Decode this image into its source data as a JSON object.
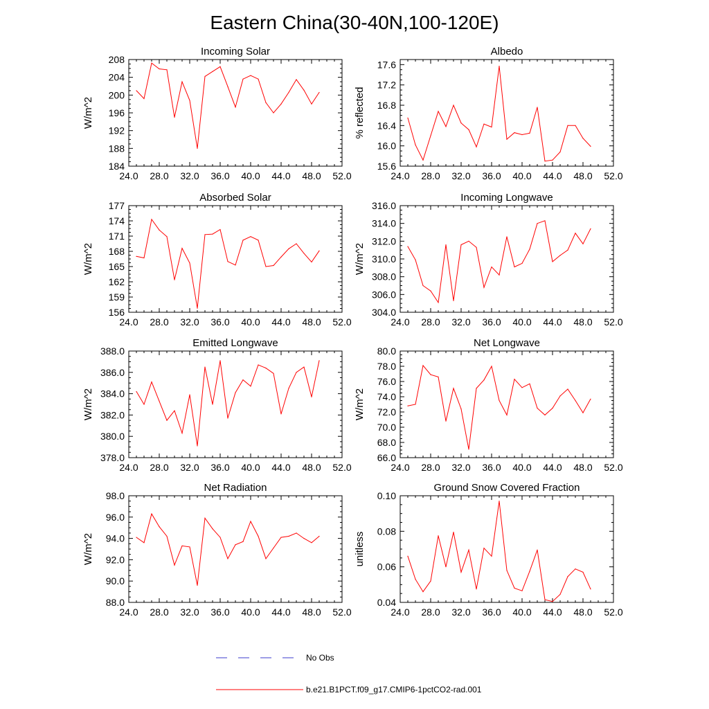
{
  "page_title": "Eastern China(30-40N,100-120E)",
  "legend": [
    {
      "label": "No Obs",
      "color": "#3b3bcc",
      "style": "dashed"
    },
    {
      "label": "b.e21.B1PCT.f09_g17.CMIP6-1pctCO2-rad.001",
      "color": "#ff0000",
      "style": "solid"
    }
  ],
  "chart_data": [
    {
      "type": "line",
      "title": "Incoming Solar",
      "ylabel": "W/m^2",
      "xlim": [
        24,
        52
      ],
      "ylim": [
        184,
        208
      ],
      "xticks": [
        "24.0",
        "28.0",
        "32.0",
        "36.0",
        "40.0",
        "44.0",
        "48.0",
        "52.0"
      ],
      "yticks": [
        "184",
        "188",
        "192",
        "196",
        "200",
        "204",
        "208"
      ],
      "series": [
        {
          "color": "#ff0000",
          "x": [
            25,
            26,
            27,
            28,
            29,
            30,
            31,
            32,
            33,
            34,
            35,
            36,
            37,
            38,
            39,
            40,
            41,
            42,
            43,
            44,
            45,
            46,
            47,
            48,
            49
          ],
          "values": [
            201,
            199.2,
            207.2,
            205.9,
            205.7,
            195,
            203,
            198.8,
            188,
            204.2,
            205.3,
            206.4,
            201.9,
            197.3,
            203.6,
            204.4,
            203.6,
            198.3,
            196,
            198,
            200.6,
            203.5,
            201.1,
            198,
            200.6
          ]
        }
      ]
    },
    {
      "type": "line",
      "title": "Albedo",
      "ylabel": "% reflected",
      "xlim": [
        24,
        52
      ],
      "ylim": [
        15.6,
        17.7
      ],
      "xticks": [
        "24.0",
        "28.0",
        "32.0",
        "36.0",
        "40.0",
        "44.0",
        "48.0",
        "52.0"
      ],
      "yticks": [
        "15.6",
        "16.0",
        "16.4",
        "16.8",
        "17.2",
        "17.6"
      ],
      "series": [
        {
          "color": "#ff0000",
          "x": [
            25,
            26,
            27,
            28,
            29,
            30,
            31,
            32,
            33,
            34,
            35,
            36,
            37,
            38,
            39,
            40,
            41,
            42,
            43,
            44,
            45,
            46,
            47,
            48,
            49
          ],
          "values": [
            16.55,
            16.02,
            15.72,
            16.2,
            16.68,
            16.38,
            16.8,
            16.45,
            16.32,
            15.98,
            16.43,
            16.37,
            17.57,
            16.13,
            16.26,
            16.22,
            16.25,
            16.76,
            15.7,
            15.72,
            15.88,
            16.4,
            16.4,
            16.15,
            15.99
          ]
        }
      ]
    },
    {
      "type": "line",
      "title": "Absorbed Solar",
      "ylabel": "W/m^2",
      "xlim": [
        24,
        52
      ],
      "ylim": [
        156,
        177
      ],
      "xticks": [
        "24.0",
        "28.0",
        "32.0",
        "36.0",
        "40.0",
        "44.0",
        "48.0",
        "52.0"
      ],
      "yticks": [
        "156",
        "159",
        "162",
        "165",
        "168",
        "171",
        "174",
        "177"
      ],
      "series": [
        {
          "color": "#ff0000",
          "x": [
            25,
            26,
            27,
            28,
            29,
            30,
            31,
            32,
            33,
            34,
            35,
            36,
            37,
            38,
            39,
            40,
            41,
            42,
            43,
            44,
            45,
            46,
            47,
            48,
            49
          ],
          "values": [
            167,
            166.7,
            174.3,
            172.2,
            170.9,
            162.4,
            168.6,
            165.7,
            156.8,
            171.3,
            171.4,
            172.3,
            166,
            165.3,
            170.2,
            170.9,
            170.2,
            165,
            165.2,
            166.9,
            168.5,
            169.5,
            167.6,
            165.9,
            168.1
          ]
        }
      ]
    },
    {
      "type": "line",
      "title": "Incoming Longwave",
      "ylabel": "W/m^2",
      "xlim": [
        24,
        52
      ],
      "ylim": [
        304,
        316
      ],
      "xticks": [
        "24.0",
        "28.0",
        "32.0",
        "36.0",
        "40.0",
        "44.0",
        "48.0",
        "52.0"
      ],
      "yticks": [
        "304.0",
        "306.0",
        "308.0",
        "310.0",
        "312.0",
        "314.0",
        "316.0"
      ],
      "series": [
        {
          "color": "#ff0000",
          "x": [
            25,
            26,
            27,
            28,
            29,
            30,
            31,
            32,
            33,
            34,
            35,
            36,
            37,
            38,
            39,
            40,
            41,
            42,
            43,
            44,
            45,
            46,
            47,
            48,
            49
          ],
          "values": [
            311.4,
            309.9,
            307,
            306.4,
            305.1,
            311.6,
            305.3,
            311.6,
            312,
            311.3,
            306.8,
            309.1,
            308.2,
            312.5,
            309.1,
            309.5,
            311.1,
            314,
            314.3,
            309.7,
            310.4,
            311,
            312.9,
            311.7,
            313.4
          ]
        }
      ]
    },
    {
      "type": "line",
      "title": "Emitted Longwave",
      "ylabel": "W/m^2",
      "xlim": [
        24,
        52
      ],
      "ylim": [
        378,
        388
      ],
      "xticks": [
        "24.0",
        "28.0",
        "32.0",
        "36.0",
        "40.0",
        "44.0",
        "48.0",
        "52.0"
      ],
      "yticks": [
        "378.0",
        "380.0",
        "382.0",
        "384.0",
        "386.0",
        "388.0"
      ],
      "series": [
        {
          "color": "#ff0000",
          "x": [
            25,
            26,
            27,
            28,
            29,
            30,
            31,
            32,
            33,
            34,
            35,
            36,
            37,
            38,
            39,
            40,
            41,
            42,
            43,
            44,
            45,
            46,
            47,
            48,
            49
          ],
          "values": [
            384.2,
            383,
            385.1,
            383.3,
            381.5,
            382.4,
            380.3,
            383.9,
            379.1,
            386.5,
            383,
            387.1,
            381.7,
            384.1,
            385.3,
            384.7,
            386.7,
            386.4,
            385.9,
            382.1,
            384.5,
            386,
            386.5,
            383.7,
            387.1
          ]
        }
      ]
    },
    {
      "type": "line",
      "title": "Net Longwave",
      "ylabel": "W/m^2",
      "xlim": [
        24,
        52
      ],
      "ylim": [
        66,
        80
      ],
      "xticks": [
        "24.0",
        "28.0",
        "32.0",
        "36.0",
        "40.0",
        "44.0",
        "48.0",
        "52.0"
      ],
      "yticks": [
        "66.0",
        "68.0",
        "70.0",
        "72.0",
        "74.0",
        "76.0",
        "78.0",
        "80.0"
      ],
      "series": [
        {
          "color": "#ff0000",
          "x": [
            25,
            26,
            27,
            28,
            29,
            30,
            31,
            32,
            33,
            34,
            35,
            36,
            37,
            38,
            39,
            40,
            41,
            42,
            43,
            44,
            45,
            46,
            47,
            48,
            49
          ],
          "values": [
            72.8,
            73,
            78.1,
            76.9,
            76.6,
            70.8,
            75.1,
            72.4,
            67.1,
            75.1,
            76.2,
            78,
            73.5,
            71.6,
            76.3,
            75.2,
            75.7,
            72.5,
            71.6,
            72.5,
            74.1,
            75,
            73.5,
            71.9,
            73.7
          ]
        }
      ]
    },
    {
      "type": "line",
      "title": "Net Radiation",
      "ylabel": "W/m^2",
      "xlim": [
        24,
        52
      ],
      "ylim": [
        88,
        98
      ],
      "xticks": [
        "24.0",
        "28.0",
        "32.0",
        "36.0",
        "40.0",
        "44.0",
        "48.0",
        "52.0"
      ],
      "yticks": [
        "88.0",
        "90.0",
        "92.0",
        "94.0",
        "96.0",
        "98.0"
      ],
      "series": [
        {
          "color": "#ff0000",
          "x": [
            25,
            26,
            27,
            28,
            29,
            30,
            31,
            32,
            33,
            34,
            35,
            36,
            37,
            38,
            39,
            40,
            41,
            42,
            43,
            44,
            45,
            46,
            47,
            48,
            49
          ],
          "values": [
            94.1,
            93.6,
            96.3,
            95.1,
            94.2,
            91.5,
            93.3,
            93.2,
            89.6,
            95.9,
            94.9,
            94.1,
            92.1,
            93.4,
            93.7,
            95.6,
            94.2,
            92.1,
            93.1,
            94.1,
            94.2,
            94.5,
            94,
            93.6,
            94.2
          ]
        }
      ]
    },
    {
      "type": "line",
      "title": "Ground Snow Covered Fraction",
      "ylabel": "unitless",
      "xlim": [
        24,
        52
      ],
      "ylim": [
        0.04,
        0.1
      ],
      "xticks": [
        "24.0",
        "28.0",
        "32.0",
        "36.0",
        "40.0",
        "44.0",
        "48.0",
        "52.0"
      ],
      "yticks": [
        "0.04",
        "0.06",
        "0.08",
        "0.10"
      ],
      "series": [
        {
          "color": "#ff0000",
          "x": [
            25,
            26,
            27,
            28,
            29,
            30,
            31,
            32,
            33,
            34,
            35,
            36,
            37,
            38,
            39,
            40,
            41,
            42,
            43,
            44,
            45,
            46,
            47,
            48,
            49
          ],
          "values": [
            0.066,
            0.053,
            0.046,
            0.052,
            0.0775,
            0.06,
            0.0795,
            0.057,
            0.0695,
            0.0475,
            0.0705,
            0.066,
            0.097,
            0.058,
            0.048,
            0.0465,
            0.0575,
            0.0695,
            0.0415,
            0.0405,
            0.0445,
            0.0545,
            0.0588,
            0.057,
            0.0475
          ]
        }
      ]
    }
  ]
}
